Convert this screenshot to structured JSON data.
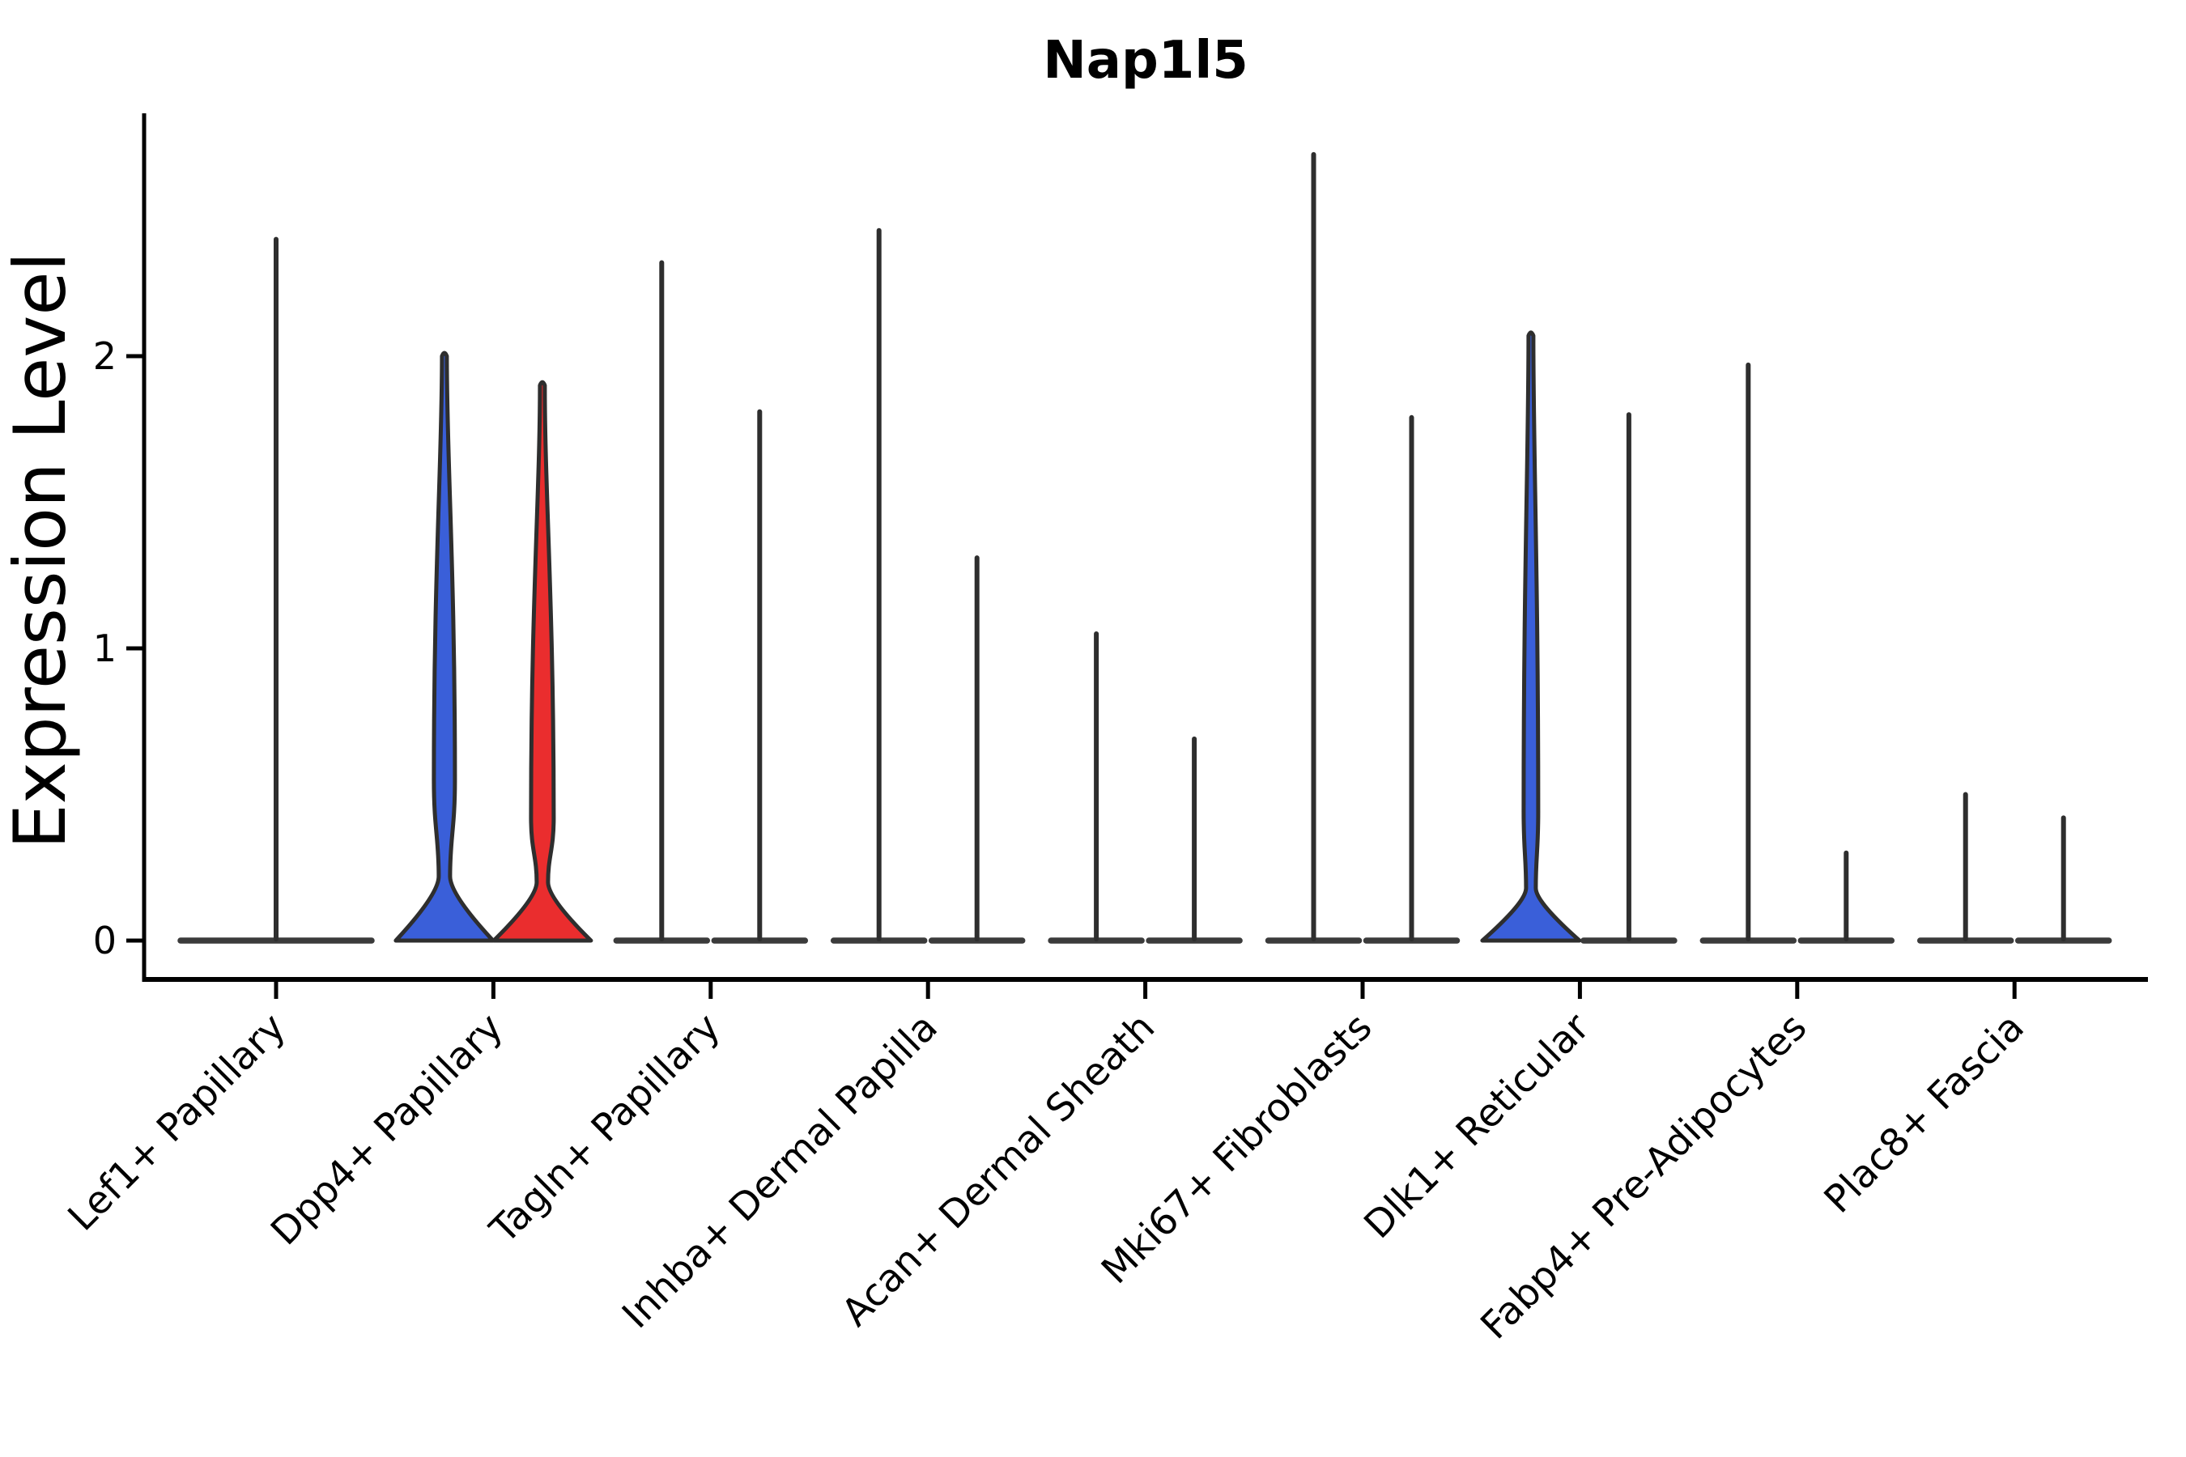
{
  "figure": {
    "title": "Nap1l5",
    "ylabel": "Expression Level"
  },
  "chart_data": {
    "type": "violin",
    "title": "Nap1l5",
    "xlabel": "",
    "ylabel": "Expression Level",
    "yticks": [
      0,
      1,
      2
    ],
    "ylim": [
      -0.13,
      2.83
    ],
    "grid": false,
    "legend": "none",
    "group_colors": {
      "blue": "#3A5FD9",
      "red": "#EA2D2E"
    },
    "outline_color": "#2E2E2E",
    "categories": [
      "Lef1+ Papillary",
      "Dpp4+ Papillary",
      "Tagln+ Papillary",
      "Inhba+ Dermal Papilla",
      "Acan+ Dermal Sheath",
      "Mki67+ Fibroblasts",
      "Dlk1+ Reticular",
      "Fabp4+ Pre-Adipocytes",
      "Plac8+ Fascia"
    ],
    "violins": [
      [
        {
          "span": "full",
          "kind": "spike",
          "max": 2.4,
          "fill": "none"
        }
      ],
      [
        {
          "span": "left",
          "kind": "shaped",
          "max": 2.0,
          "fill": "#3A5FD9",
          "neck": {
            "v": 0.22,
            "w": 7
          },
          "bulge": {
            "v": 0.55,
            "w": 13
          }
        },
        {
          "span": "right",
          "kind": "shaped",
          "max": 1.9,
          "fill": "#EA2D2E",
          "neck": {
            "v": 0.2,
            "w": 7
          },
          "bulge": {
            "v": 0.42,
            "w": 14
          }
        }
      ],
      [
        {
          "span": "left",
          "kind": "spike",
          "max": 2.32,
          "fill": "none"
        },
        {
          "span": "right",
          "kind": "spike",
          "max": 1.81,
          "fill": "none"
        }
      ],
      [
        {
          "span": "left",
          "kind": "spike",
          "max": 2.43,
          "fill": "none"
        },
        {
          "span": "right",
          "kind": "spike",
          "max": 1.31,
          "fill": "none"
        }
      ],
      [
        {
          "span": "left",
          "kind": "spike",
          "max": 1.05,
          "fill": "none"
        },
        {
          "span": "right",
          "kind": "spike",
          "max": 0.69,
          "fill": "none"
        }
      ],
      [
        {
          "span": "left",
          "kind": "spike",
          "max": 2.69,
          "fill": "none"
        },
        {
          "span": "right",
          "kind": "spike",
          "max": 1.79,
          "fill": "none"
        }
      ],
      [
        {
          "span": "left",
          "kind": "shaped",
          "max": 2.07,
          "fill": "#3A5FD9",
          "neck": {
            "v": 0.18,
            "w": 6
          },
          "bulge": {
            "v": 0.44,
            "w": 9
          }
        },
        {
          "span": "right",
          "kind": "spike",
          "max": 1.8,
          "fill": "none"
        }
      ],
      [
        {
          "span": "left",
          "kind": "spike",
          "max": 1.97,
          "fill": "none"
        },
        {
          "span": "right",
          "kind": "spike",
          "max": 0.3,
          "fill": "none"
        }
      ],
      [
        {
          "span": "left",
          "kind": "spike",
          "max": 0.5,
          "fill": "none"
        },
        {
          "span": "right",
          "kind": "spike",
          "max": 0.42,
          "fill": "none"
        }
      ]
    ]
  }
}
